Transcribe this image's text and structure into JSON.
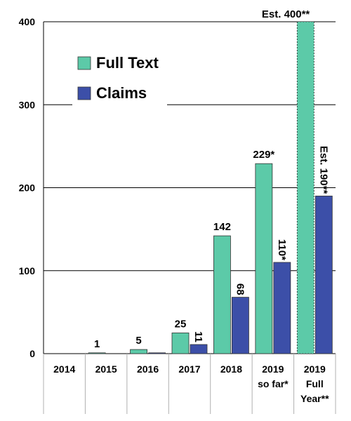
{
  "chart_data": {
    "type": "bar",
    "categories": [
      [
        "2014"
      ],
      [
        "2015"
      ],
      [
        "2016"
      ],
      [
        "2017"
      ],
      [
        "2018"
      ],
      [
        "2019",
        "so far*"
      ],
      [
        "2019",
        "Full",
        "Year**"
      ]
    ],
    "series": [
      {
        "name": "Full Text",
        "color": "#5ccaa8",
        "values": [
          0,
          1,
          5,
          25,
          142,
          229,
          400
        ],
        "labels": [
          "",
          "1",
          "5",
          "25",
          "142",
          "229*",
          "Est. 400**"
        ]
      },
      {
        "name": "Claims",
        "color": "#3c4fa8",
        "values": [
          0,
          0,
          1,
          11,
          68,
          110,
          190
        ],
        "labels": [
          "",
          "",
          "",
          "11",
          "68",
          "110*",
          "Est. 190**"
        ]
      }
    ],
    "ylim": [
      0,
      400
    ],
    "yticks": [
      "0",
      "100",
      "200",
      "300",
      "400"
    ],
    "grid": true,
    "legend_position": "top-left",
    "estimated_bar_style": "dotted"
  }
}
